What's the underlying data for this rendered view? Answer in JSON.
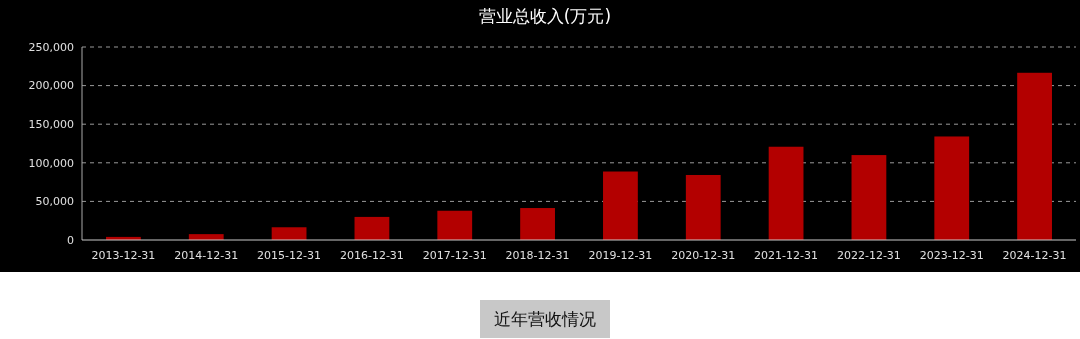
{
  "chart_data": {
    "type": "bar",
    "title": "营业总收入(万元)",
    "categories": [
      "2013-12-31",
      "2014-12-31",
      "2015-12-31",
      "2016-12-31",
      "2017-12-31",
      "2018-12-31",
      "2019-12-31",
      "2020-12-31",
      "2021-12-31",
      "2022-12-31",
      "2023-12-31",
      "2024-12-31"
    ],
    "values": [
      4000,
      7600,
      16500,
      29900,
      37900,
      41400,
      88700,
      84200,
      120800,
      110000,
      134100,
      216600
    ],
    "color": "#b30000",
    "ylim": [
      0,
      250000
    ],
    "yticks": [
      {
        "value": 0,
        "label": "0"
      },
      {
        "value": 50000,
        "label": "50,000"
      },
      {
        "value": 100000,
        "label": "100,000"
      },
      {
        "value": 150000,
        "label": "150,000"
      },
      {
        "value": 200000,
        "label": "200,000"
      },
      {
        "value": 250000,
        "label": "250,000"
      }
    ],
    "grid": "y",
    "annotations": [
      "近年营收情况"
    ]
  }
}
